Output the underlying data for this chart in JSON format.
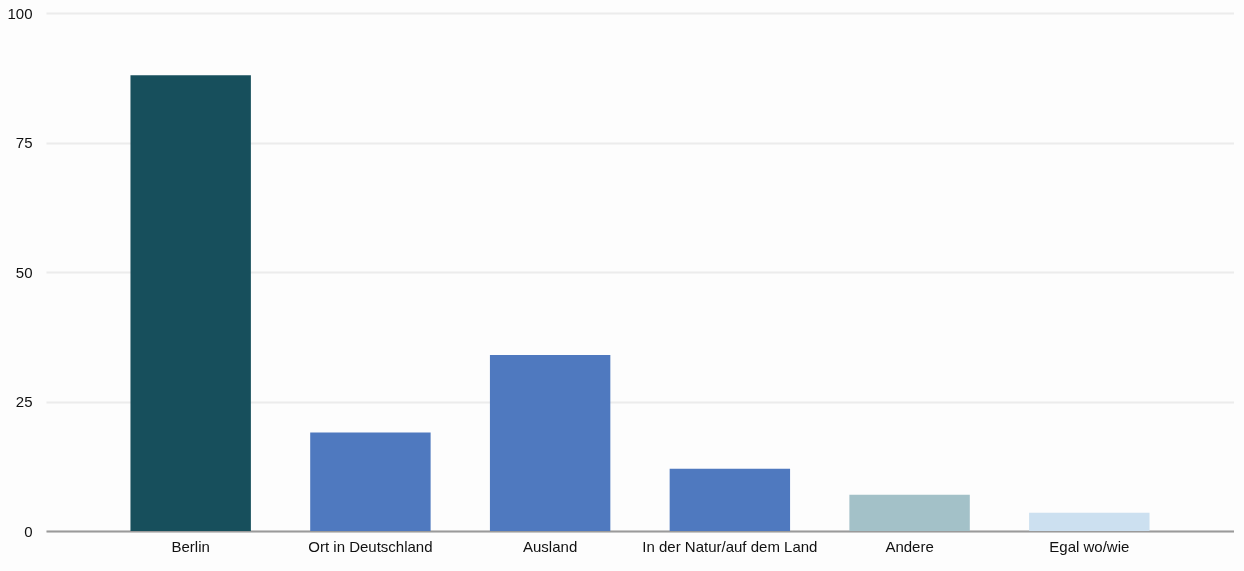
{
  "chart_data": {
    "type": "bar",
    "categories": [
      "Berlin",
      "Ort in Deutschland",
      "Ausland",
      "In der Natur/auf dem Land",
      "Andere",
      "Egal wo/wie"
    ],
    "values": [
      88,
      19,
      34,
      12,
      7,
      3.5
    ],
    "colors": [
      "#174f5c",
      "#4f79bf",
      "#4f79bf",
      "#4f79bf",
      "#a3c1c8",
      "#cce0f0"
    ],
    "ylim": [
      0,
      100
    ],
    "yticks": [
      0,
      25,
      50,
      75,
      100
    ],
    "grid": "y"
  }
}
